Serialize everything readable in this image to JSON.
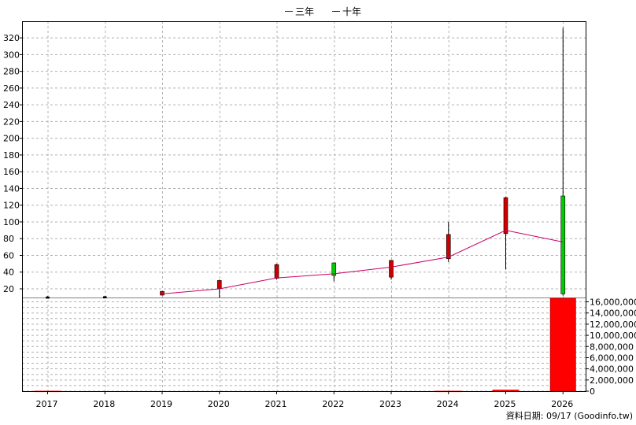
{
  "chart_data": {
    "type": "candlestick",
    "title": "",
    "legend": {
      "placement": "top-center",
      "items": [
        {
          "label": "三年",
          "color": "#cc0066"
        },
        {
          "label": "十年",
          "color": "#6600cc"
        }
      ]
    },
    "categories": [
      "2017",
      "2018",
      "2019",
      "2020",
      "2021",
      "2022",
      "2023",
      "2024",
      "2025",
      "2026"
    ],
    "price_axis": {
      "ylim": [
        0,
        330
      ],
      "ticks": [
        20,
        40,
        60,
        80,
        100,
        120,
        140,
        160,
        180,
        200,
        220,
        240,
        260,
        280,
        300,
        320
      ]
    },
    "volume_axis": {
      "ylim": [
        0,
        16800000
      ],
      "ticks": [
        "0",
        "2,000,000",
        "4,000,000",
        "6,000,000",
        "8,000,000",
        "10,000,000",
        "12,000,000",
        "14,000,000",
        "16,000,000"
      ],
      "tick_values": [
        0,
        2000000,
        4000000,
        6000000,
        8000000,
        10000000,
        12000000,
        14000000,
        16000000
      ]
    },
    "candles": [
      {
        "year": "2017",
        "open": 10.5,
        "high": 11.3,
        "low": 9.5,
        "close": 10.0,
        "color": "black"
      },
      {
        "year": "2018",
        "open": 10.8,
        "high": 11.5,
        "low": 9.8,
        "close": 10.5,
        "color": "black"
      },
      {
        "year": "2019",
        "open": 12.5,
        "high": 17.5,
        "low": 12.0,
        "close": 17.0,
        "color": "red"
      },
      {
        "year": "2020",
        "open": 20.5,
        "high": 31.0,
        "low": 9.5,
        "close": 30.0,
        "color": "red"
      },
      {
        "year": "2021",
        "open": 32.5,
        "high": 50.0,
        "low": 31.0,
        "close": 49.0,
        "color": "red"
      },
      {
        "year": "2022",
        "open": 51.0,
        "high": 51.5,
        "low": 29.0,
        "close": 36.0,
        "color": "green"
      },
      {
        "year": "2023",
        "open": 34.0,
        "high": 54.5,
        "low": 31.0,
        "close": 54.0,
        "color": "red"
      },
      {
        "year": "2024",
        "open": 56.0,
        "high": 100.0,
        "low": 52.0,
        "close": 85.0,
        "color": "red"
      },
      {
        "year": "2025",
        "open": 86.0,
        "high": 130.0,
        "low": 43.0,
        "close": 129.0,
        "color": "red"
      },
      {
        "year": "2026",
        "open": 131.0,
        "high": 332.0,
        "low": 12.0,
        "close": 14.0,
        "color": "green"
      }
    ],
    "three_year_line": [
      {
        "year": "2019",
        "value": 14.0
      },
      {
        "year": "2020",
        "value": 20.0
      },
      {
        "year": "2021",
        "value": 33.0
      },
      {
        "year": "2022",
        "value": 38.0
      },
      {
        "year": "2023",
        "value": 46.0
      },
      {
        "year": "2024",
        "value": 58.0
      },
      {
        "year": "2025",
        "value": 90.0
      },
      {
        "year": "2026",
        "value": 76.0
      }
    ],
    "volume": [
      {
        "year": "2017",
        "value": 60000,
        "color": "red"
      },
      {
        "year": "2018",
        "value": 0,
        "color": "red"
      },
      {
        "year": "2019",
        "value": 0,
        "color": "red"
      },
      {
        "year": "2020",
        "value": 0,
        "color": "red"
      },
      {
        "year": "2021",
        "value": 0,
        "color": "red"
      },
      {
        "year": "2022",
        "value": 0,
        "color": "red"
      },
      {
        "year": "2023",
        "value": 0,
        "color": "red"
      },
      {
        "year": "2024",
        "value": 60000,
        "color": "red"
      },
      {
        "year": "2025",
        "value": 260000,
        "color": "red"
      },
      {
        "year": "2026",
        "value": 16800000,
        "color": "red"
      }
    ],
    "grid": true
  },
  "footer": {
    "text": "資料日期: 09/17  (Goodinfo.tw)"
  }
}
